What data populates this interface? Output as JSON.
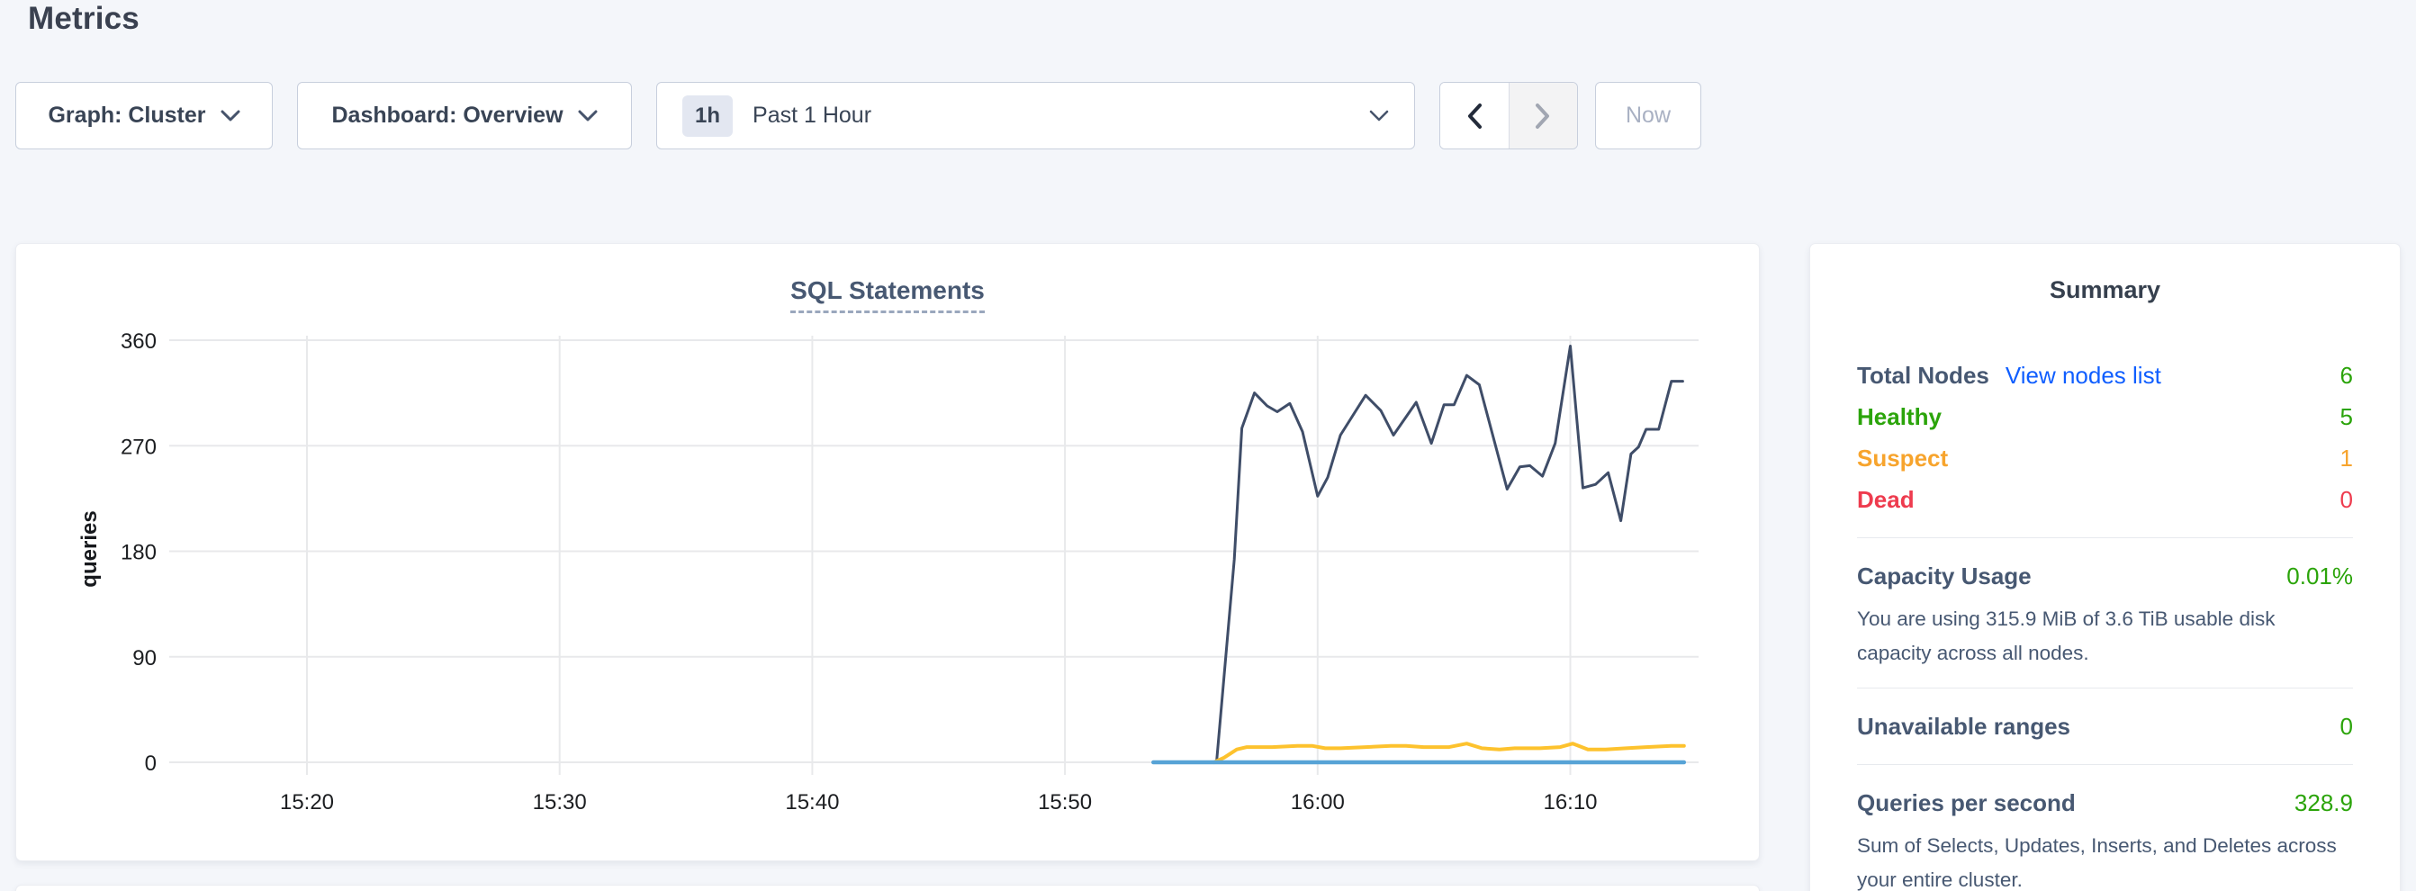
{
  "header": {
    "title": "Metrics"
  },
  "controls": {
    "graph_dropdown": {
      "label": "Graph: Cluster"
    },
    "dashboard_dropdown": {
      "label": "Dashboard: Overview"
    },
    "time_window": {
      "badge": "1h",
      "label": "Past 1 Hour"
    },
    "now_button": {
      "label": "Now"
    }
  },
  "summary": {
    "title": "Summary",
    "total_nodes": {
      "label": "Total Nodes",
      "link": "View nodes list",
      "value": "6"
    },
    "statuses": [
      {
        "label": "Healthy",
        "value": "5",
        "color": "#2ba40a"
      },
      {
        "label": "Suspect",
        "value": "1",
        "color": "#f7a42d"
      },
      {
        "label": "Dead",
        "value": "0",
        "color": "#ee3b4e"
      }
    ],
    "capacity": {
      "label": "Capacity Usage",
      "value": "0.01%",
      "description": "You are using 315.9 MiB of 3.6 TiB usable disk capacity across all nodes."
    },
    "unavailable_ranges": {
      "label": "Unavailable ranges",
      "value": "0"
    },
    "qps": {
      "label": "Queries per second",
      "value": "328.9",
      "description": "Sum of Selects, Updates, Inserts, and Deletes across your entire cluster."
    }
  },
  "colors": {
    "value_green": "#2ba40a",
    "link_blue": "#0f5eff",
    "status_orange": "#f7a42d",
    "status_red": "#ee3b4e",
    "grid": "#e8e9eb",
    "tick_text": "#1c1e21"
  },
  "chart_data": {
    "type": "line",
    "title": "SQL Statements",
    "xlabel": "",
    "ylabel": "queries",
    "x_unit": "minutes after 15:00",
    "x_ticks": [
      {
        "m": 20,
        "label": "15:20"
      },
      {
        "m": 30,
        "label": "15:30"
      },
      {
        "m": 40,
        "label": "15:40"
      },
      {
        "m": 50,
        "label": "15:50"
      },
      {
        "m": 60,
        "label": "16:00"
      },
      {
        "m": 70,
        "label": "16:10"
      }
    ],
    "y_ticks": [
      0,
      90,
      180,
      270,
      360
    ],
    "ylim": [
      0,
      360
    ],
    "xlim_minutes": [
      14.6,
      75.1
    ],
    "grid": true,
    "legend": "none",
    "series": [
      {
        "name": "navy-line",
        "color": "#3f4d68",
        "width": 3,
        "points": [
          [
            56.0,
            0
          ],
          [
            56.7,
            173
          ],
          [
            57.0,
            285
          ],
          [
            57.5,
            315
          ],
          [
            58.0,
            304
          ],
          [
            58.4,
            299
          ],
          [
            58.9,
            306
          ],
          [
            59.4,
            282
          ],
          [
            60.0,
            227
          ],
          [
            60.4,
            243
          ],
          [
            60.9,
            279
          ],
          [
            61.9,
            313
          ],
          [
            62.5,
            300
          ],
          [
            63.0,
            279
          ],
          [
            63.9,
            307
          ],
          [
            64.5,
            272
          ],
          [
            65.0,
            305
          ],
          [
            65.4,
            305
          ],
          [
            65.9,
            330
          ],
          [
            66.4,
            322
          ],
          [
            67.5,
            233
          ],
          [
            68.0,
            252
          ],
          [
            68.4,
            253
          ],
          [
            68.9,
            244
          ],
          [
            69.4,
            272
          ],
          [
            70.0,
            355
          ],
          [
            70.5,
            234
          ],
          [
            71.0,
            237
          ],
          [
            71.5,
            247
          ],
          [
            72.0,
            206
          ],
          [
            72.4,
            263
          ],
          [
            72.7,
            269
          ],
          [
            73.0,
            284
          ],
          [
            73.5,
            284
          ],
          [
            74.0,
            325
          ],
          [
            74.45,
            325
          ]
        ]
      },
      {
        "name": "yellow-line",
        "color": "#fdc22d",
        "width": 4,
        "points": [
          [
            55.9,
            0
          ],
          [
            56.3,
            4
          ],
          [
            56.8,
            11
          ],
          [
            57.2,
            13
          ],
          [
            58.2,
            13
          ],
          [
            59.2,
            14
          ],
          [
            59.8,
            14
          ],
          [
            60.3,
            12
          ],
          [
            60.9,
            12
          ],
          [
            61.9,
            13
          ],
          [
            62.9,
            14
          ],
          [
            63.5,
            14
          ],
          [
            64.2,
            13
          ],
          [
            65.2,
            13
          ],
          [
            65.9,
            16
          ],
          [
            66.5,
            12
          ],
          [
            67.2,
            11
          ],
          [
            67.8,
            12
          ],
          [
            68.8,
            12
          ],
          [
            69.6,
            13
          ],
          [
            70.1,
            16
          ],
          [
            70.7,
            11
          ],
          [
            71.4,
            11
          ],
          [
            72.2,
            12
          ],
          [
            73.0,
            13
          ],
          [
            74.0,
            14
          ],
          [
            74.5,
            14
          ]
        ]
      },
      {
        "name": "blue-line",
        "color": "#57a3d6",
        "width": 4.5,
        "points": [
          [
            53.5,
            0
          ],
          [
            74.5,
            0
          ]
        ]
      }
    ]
  }
}
